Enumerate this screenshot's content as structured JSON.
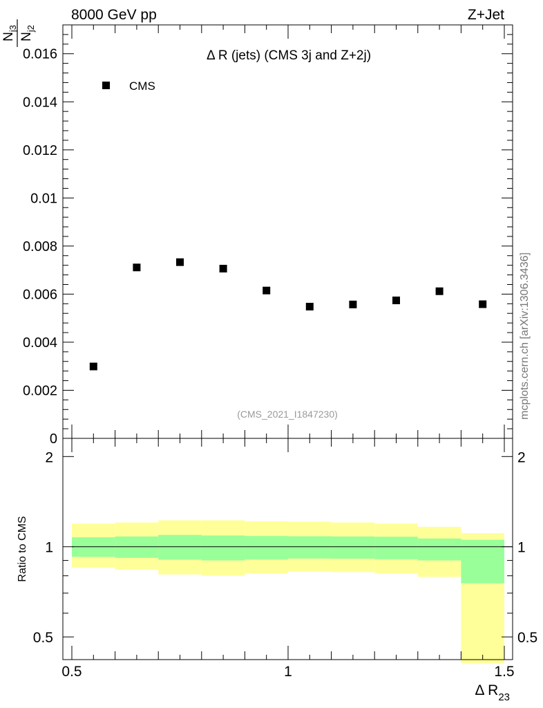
{
  "header": {
    "energy_label": "8000 GeV pp",
    "process_label": "Z+Jet"
  },
  "side_label": "mcplots.cern.ch [arXiv:1306.3436]",
  "chart_data": [
    {
      "type": "scatter",
      "title": "Δ R (jets) (CMS 3j and Z+2j)",
      "watermark": "(CMS_2021_I1847230)",
      "ylabel_num": "N",
      "ylabel_num_sub": "j3",
      "ylabel_den": "N",
      "ylabel_den_sub": "j2",
      "xlim": [
        0.5,
        1.5
      ],
      "ylim": [
        0,
        0.0172
      ],
      "yticks": [
        0,
        0.002,
        0.004,
        0.006,
        0.008,
        0.01,
        0.012,
        0.014,
        0.016
      ],
      "ytick_labels": [
        "0",
        "0.002",
        "0.004",
        "0.006",
        "0.008",
        "0.01",
        "0.012",
        "0.014",
        "0.016"
      ],
      "legend_placement": "top-left",
      "series": [
        {
          "name": "CMS",
          "marker": "square",
          "color": "#000000",
          "x": [
            0.55,
            0.65,
            0.75,
            0.85,
            0.95,
            1.05,
            1.15,
            1.25,
            1.35,
            1.45
          ],
          "y": [
            0.00299,
            0.00711,
            0.00733,
            0.00706,
            0.00615,
            0.00548,
            0.00557,
            0.00574,
            0.00612,
            0.00558
          ]
        }
      ]
    },
    {
      "type": "area",
      "ylabel": "Ratio to CMS",
      "xlabel_main": "Δ R",
      "xlabel_sub": "23",
      "xlim": [
        0.5,
        1.5
      ],
      "ylim": [
        0.42,
        2.3
      ],
      "scale": "log",
      "xticks": [
        0.5,
        1,
        1.5
      ],
      "xtick_labels": [
        "0.5",
        "1",
        "1.5"
      ],
      "yticks": [
        0.5,
        1,
        2
      ],
      "ytick_labels": [
        "0.5",
        "1",
        "2"
      ],
      "reference_line": 1,
      "bins": [
        0.5,
        0.6,
        0.7,
        0.8,
        0.9,
        1.0,
        1.1,
        1.2,
        1.3,
        1.4,
        1.5
      ],
      "stat_band": {
        "color": "#99ff99",
        "low": [
          0.925,
          0.918,
          0.905,
          0.9,
          0.906,
          0.913,
          0.912,
          0.908,
          0.9,
          0.755
        ],
        "high": [
          1.075,
          1.082,
          1.095,
          1.09,
          1.086,
          1.084,
          1.082,
          1.08,
          1.065,
          1.055
        ]
      },
      "total_band": {
        "color": "#ffff99",
        "low": [
          0.852,
          0.838,
          0.808,
          0.8,
          0.815,
          0.826,
          0.823,
          0.815,
          0.793,
          0.408
        ],
        "high": [
          1.195,
          1.205,
          1.225,
          1.225,
          1.215,
          1.212,
          1.205,
          1.195,
          1.165,
          1.11
        ]
      }
    }
  ]
}
